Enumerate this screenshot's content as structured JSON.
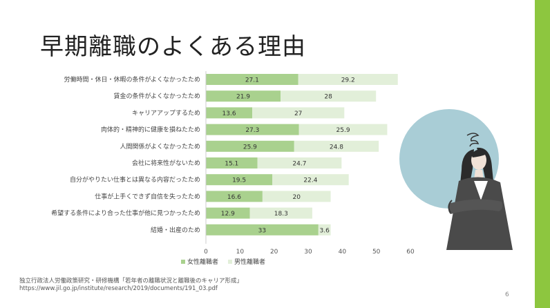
{
  "slide": {
    "title": "早期離職のよくある理由",
    "source_line1": "独立行政法人労働政策研究・研修機構「若年者の離職状況と離職後のキャリア形成」",
    "source_line2": "https://www.jil.go.jp/institute/research/2019/documents/191_03.pdf",
    "page_number": "6",
    "colors": {
      "accent_bar": "#8dc63f",
      "circle": "#a9cdd6"
    }
  },
  "chart_data": {
    "type": "bar",
    "orientation": "horizontal",
    "stacked": true,
    "categories": [
      "労働時間・休日・休暇の条件がよくなかったため",
      "賃金の条件がよくなかったため",
      "キャリアアップするため",
      "肉体的・精神的に健康を損ねたため",
      "人間関係がよくなかったため",
      "会社に将来性がないため",
      "自分がやりたい仕事とは異なる内容だったため",
      "仕事が上手くできず自信を失ったため",
      "希望する条件により合った仕事が他に見つかったため",
      "結婚・出産のため"
    ],
    "series": [
      {
        "name": "女性離職者",
        "color": "#a9d18e",
        "values": [
          27.1,
          21.9,
          13.6,
          27.3,
          25.9,
          15.1,
          19.5,
          16.6,
          12.9,
          33
        ]
      },
      {
        "name": "男性離職者",
        "color": "#e2efd9",
        "values": [
          29.2,
          28,
          27,
          25.9,
          24.8,
          24.7,
          22.4,
          20,
          18.3,
          3.6
        ]
      }
    ],
    "xlim": [
      0,
      60
    ],
    "xticks": [
      "0",
      "10",
      "20",
      "30",
      "40",
      "50",
      "60"
    ],
    "grid": false,
    "legend_position": "bottom"
  }
}
